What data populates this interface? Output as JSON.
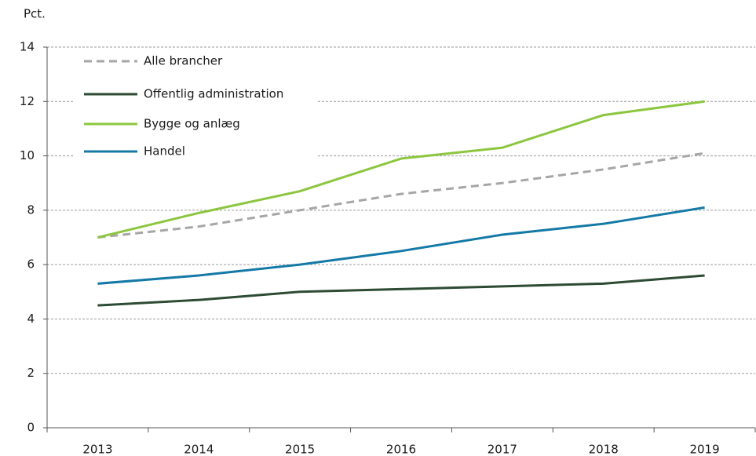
{
  "chart_data": {
    "type": "line",
    "y_label": "Pct.",
    "categories": [
      "2013",
      "2014",
      "2015",
      "2016",
      "2017",
      "2018",
      "2019"
    ],
    "series": [
      {
        "name": "Alle brancher",
        "color": "#a6a6a6",
        "dashed": true,
        "values": [
          7.0,
          7.4,
          8.0,
          8.6,
          9.0,
          9.5,
          10.1
        ]
      },
      {
        "name": "Offentlig administration",
        "color": "#2d4a33",
        "values": [
          4.5,
          4.7,
          5.0,
          5.1,
          5.2,
          5.3,
          5.6
        ]
      },
      {
        "name": "Bygge og anlæg",
        "color": "#8cc63f",
        "values": [
          7.0,
          7.9,
          8.7,
          9.9,
          10.3,
          11.5,
          12.0
        ]
      },
      {
        "name": "Handel",
        "color": "#1479a6",
        "values": [
          5.3,
          5.6,
          6.0,
          6.5,
          7.1,
          7.5,
          8.1
        ]
      }
    ],
    "ylim": [
      0,
      14
    ],
    "yticks": [
      0,
      2,
      4,
      6,
      8,
      10,
      12,
      14
    ],
    "grid": true,
    "legend": "upper left"
  }
}
